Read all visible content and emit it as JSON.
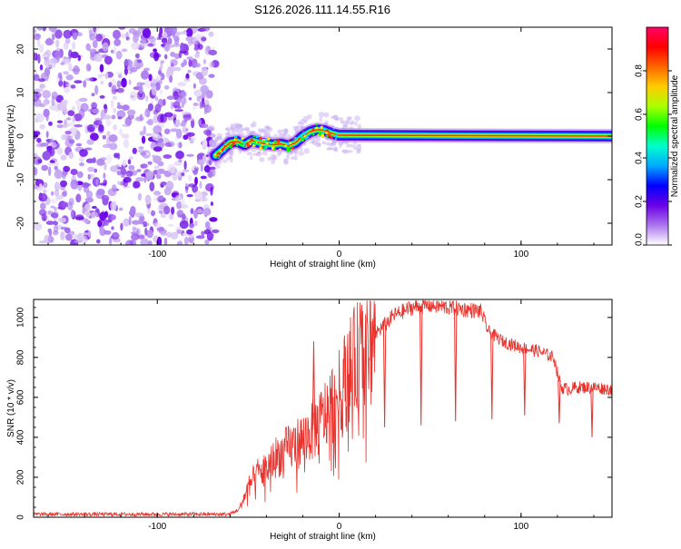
{
  "title": "S126.2026.111.14.55.R16",
  "chart_data": [
    {
      "type": "heatmap",
      "xlabel": "Height of straight line (km)",
      "ylabel": "Frequency (Hz)",
      "xlim": [
        -168,
        150
      ],
      "ylim": [
        -25,
        25
      ],
      "x_ticks": [
        -100,
        0,
        100
      ],
      "x_tick_labels": [
        "-100",
        "0",
        "100"
      ],
      "y_ticks": [
        -20,
        -10,
        0,
        10,
        20
      ],
      "y_tick_labels": [
        "-20",
        "-10",
        "0",
        "10",
        "20"
      ],
      "noise_region_x": [
        -168,
        -68
      ],
      "ridge": {
        "x": [
          -68,
          -64,
          -60,
          -56,
          -52,
          -48,
          -44,
          -40,
          -36,
          -32,
          -28,
          -24,
          -20,
          -16,
          -12,
          -8,
          -4,
          0,
          150
        ],
        "y": [
          -4.5,
          -3,
          -1.5,
          -1.2,
          -2,
          -1,
          -1.5,
          -1.8,
          -2,
          -1.8,
          -2.2,
          -1.5,
          0,
          1,
          1.5,
          1.3,
          0.6,
          0.2,
          0
        ]
      },
      "colorbar": {
        "label": "Normalized spectral amplitude",
        "ticks": [
          0.0,
          0.2,
          0.4,
          0.6,
          0.8
        ],
        "tick_labels": [
          "0.0",
          "0.2",
          "0.4",
          "0.6",
          "0.8"
        ],
        "range": [
          0,
          1
        ],
        "colors": [
          "#ffffff",
          "#ac75ee",
          "#6b00e6",
          "#0000ff",
          "#00aaff",
          "#00ffcc",
          "#00ff00",
          "#aaff00",
          "#ffcc00",
          "#ff6600",
          "#ff0000",
          "#ff0066"
        ]
      }
    },
    {
      "type": "line",
      "xlabel": "Height of straight line (km)",
      "ylabel": "SNR (10 * v/v)",
      "xlim": [
        -168,
        150
      ],
      "ylim": [
        0,
        1090
      ],
      "x_ticks": [
        -100,
        0,
        100
      ],
      "x_tick_labels": [
        "-100",
        "0",
        "100"
      ],
      "y_ticks": [
        0,
        200,
        400,
        600,
        800,
        1000
      ],
      "y_tick_labels": [
        "0",
        "200",
        "400",
        "600",
        "800",
        "1000"
      ],
      "color": "#e8322c",
      "series": [
        {
          "name": "SNR",
          "x": [
            -168,
            -60,
            -55,
            -50,
            -45,
            -40,
            -35,
            -30,
            -25,
            -20,
            -15,
            -10,
            -5,
            0,
            5,
            10,
            15,
            20,
            25,
            30,
            40,
            50,
            60,
            70,
            78,
            82,
            90,
            100,
            110,
            118,
            122,
            126,
            130,
            140,
            150
          ],
          "values": [
            15,
            15,
            40,
            150,
            220,
            240,
            300,
            330,
            360,
            390,
            430,
            480,
            560,
            620,
            730,
            800,
            860,
            920,
            960,
            1010,
            1050,
            1060,
            1050,
            1040,
            1030,
            930,
            880,
            850,
            830,
            800,
            650,
            640,
            650,
            650,
            640
          ]
        }
      ],
      "dips": [
        {
          "x": -14,
          "value": 880
        },
        {
          "x": 25,
          "value": 450
        },
        {
          "x": 45,
          "value": 460
        },
        {
          "x": 64,
          "value": 480
        },
        {
          "x": 84,
          "value": 490
        },
        {
          "x": 102,
          "value": 510
        },
        {
          "x": 121,
          "value": 470
        },
        {
          "x": 139,
          "value": 400
        }
      ]
    }
  ]
}
